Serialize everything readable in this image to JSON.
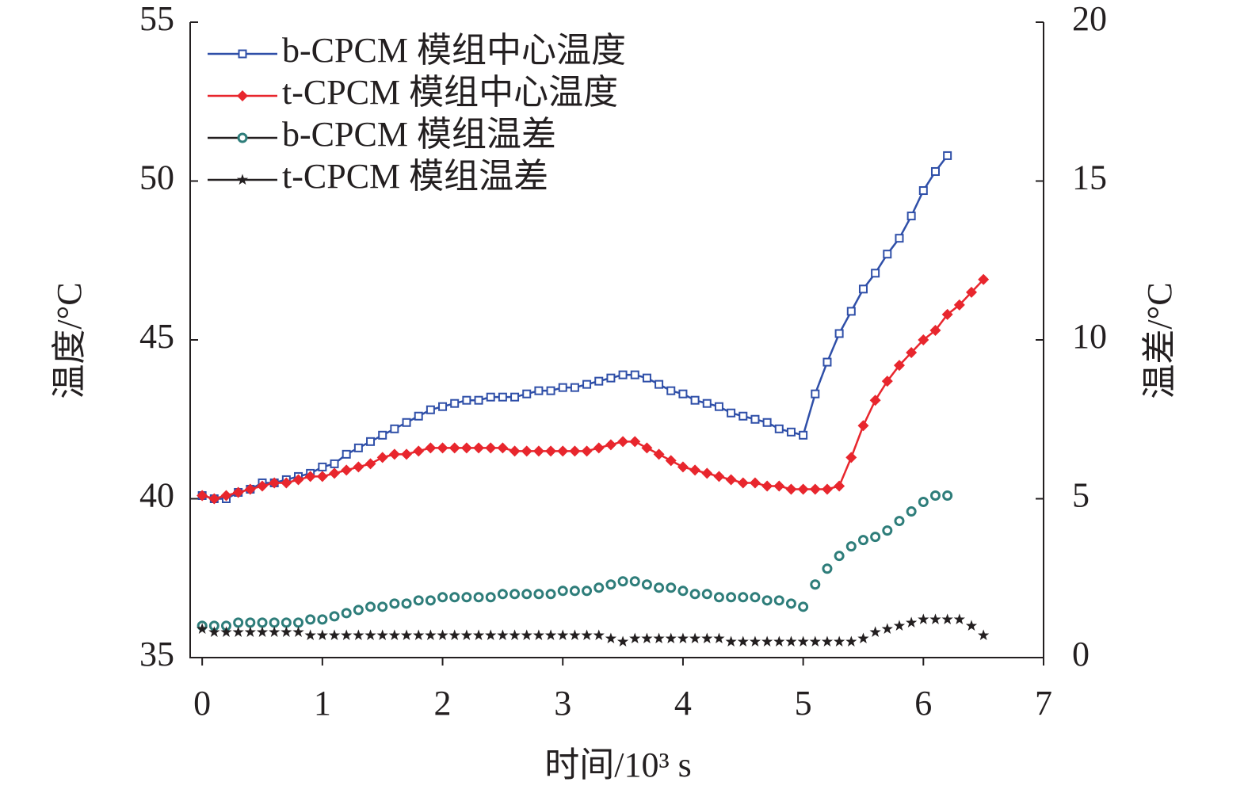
{
  "chart_data": {
    "type": "line",
    "xlabel": "时间/10³ s",
    "ylabel": "温度/°C",
    "y2label": "温差/°C",
    "xlim": [
      -0.1,
      7
    ],
    "xticks": [
      0,
      1,
      2,
      3,
      4,
      5,
      6,
      7
    ],
    "ylim": [
      35,
      55
    ],
    "yticks": [
      35,
      40,
      45,
      50,
      55
    ],
    "y2lim": [
      0,
      20
    ],
    "y2ticks": [
      0,
      5,
      10,
      15,
      20
    ],
    "legend": "upper left",
    "series": [
      {
        "name": "b-CPCM 模组中心温度",
        "color": "#2f4fa8",
        "marker": "square",
        "line": true,
        "axis": "y",
        "x": [
          0,
          0.1,
          0.2,
          0.3,
          0.4,
          0.5,
          0.6,
          0.7,
          0.8,
          0.9,
          1,
          1.1,
          1.2,
          1.3,
          1.4,
          1.5,
          1.6,
          1.7,
          1.8,
          1.9,
          2,
          2.1,
          2.2,
          2.3,
          2.4,
          2.5,
          2.6,
          2.7,
          2.8,
          2.9,
          3,
          3.1,
          3.2,
          3.3,
          3.4,
          3.5,
          3.6,
          3.7,
          3.8,
          3.9,
          4,
          4.1,
          4.2,
          4.3,
          4.4,
          4.5,
          4.6,
          4.7,
          4.8,
          4.9,
          5,
          5.1,
          5.2,
          5.3,
          5.4,
          5.5,
          5.6,
          5.7,
          5.8,
          5.9,
          6,
          6.1,
          6.2
        ],
        "values": [
          40.1,
          40.0,
          40.0,
          40.2,
          40.3,
          40.5,
          40.5,
          40.6,
          40.7,
          40.8,
          41.0,
          41.1,
          41.4,
          41.6,
          41.8,
          42.0,
          42.2,
          42.4,
          42.6,
          42.8,
          42.9,
          43.0,
          43.1,
          43.1,
          43.2,
          43.2,
          43.2,
          43.3,
          43.4,
          43.4,
          43.5,
          43.5,
          43.6,
          43.7,
          43.8,
          43.9,
          43.9,
          43.8,
          43.6,
          43.4,
          43.3,
          43.1,
          43.0,
          42.9,
          42.7,
          42.6,
          42.5,
          42.4,
          42.2,
          42.1,
          42.0,
          43.3,
          44.3,
          45.2,
          45.9,
          46.6,
          47.1,
          47.7,
          48.2,
          48.9,
          49.7,
          50.3,
          50.8
        ]
      },
      {
        "name": "t-CPCM 模组中心温度",
        "color": "#e8262d",
        "marker": "diamond",
        "line": true,
        "axis": "y",
        "x": [
          0,
          0.1,
          0.2,
          0.3,
          0.4,
          0.5,
          0.6,
          0.7,
          0.8,
          0.9,
          1,
          1.1,
          1.2,
          1.3,
          1.4,
          1.5,
          1.6,
          1.7,
          1.8,
          1.9,
          2,
          2.1,
          2.2,
          2.3,
          2.4,
          2.5,
          2.6,
          2.7,
          2.8,
          2.9,
          3,
          3.1,
          3.2,
          3.3,
          3.4,
          3.5,
          3.6,
          3.7,
          3.8,
          3.9,
          4,
          4.1,
          4.2,
          4.3,
          4.4,
          4.5,
          4.6,
          4.7,
          4.8,
          4.9,
          5,
          5.1,
          5.2,
          5.3,
          5.4,
          5.5,
          5.6,
          5.7,
          5.8,
          5.9,
          6,
          6.1,
          6.2,
          6.3,
          6.4,
          6.5
        ],
        "values": [
          40.1,
          40.0,
          40.1,
          40.2,
          40.3,
          40.4,
          40.5,
          40.5,
          40.6,
          40.7,
          40.7,
          40.8,
          40.9,
          41.0,
          41.1,
          41.3,
          41.4,
          41.4,
          41.5,
          41.6,
          41.6,
          41.6,
          41.6,
          41.6,
          41.6,
          41.6,
          41.5,
          41.5,
          41.5,
          41.5,
          41.5,
          41.5,
          41.5,
          41.6,
          41.7,
          41.8,
          41.8,
          41.6,
          41.4,
          41.2,
          41.0,
          40.9,
          40.8,
          40.7,
          40.6,
          40.5,
          40.5,
          40.4,
          40.4,
          40.3,
          40.3,
          40.3,
          40.3,
          40.4,
          41.3,
          42.3,
          43.1,
          43.7,
          44.2,
          44.6,
          45.0,
          45.3,
          45.8,
          46.1,
          46.5,
          46.9
        ]
      },
      {
        "name": "b-CPCM 模组温差",
        "color": "#2e7d7a",
        "marker": "circle",
        "line": false,
        "axis": "y2",
        "x": [
          0,
          0.1,
          0.2,
          0.3,
          0.4,
          0.5,
          0.6,
          0.7,
          0.8,
          0.9,
          1,
          1.1,
          1.2,
          1.3,
          1.4,
          1.5,
          1.6,
          1.7,
          1.8,
          1.9,
          2,
          2.1,
          2.2,
          2.3,
          2.4,
          2.5,
          2.6,
          2.7,
          2.8,
          2.9,
          3,
          3.1,
          3.2,
          3.3,
          3.4,
          3.5,
          3.6,
          3.7,
          3.8,
          3.9,
          4,
          4.1,
          4.2,
          4.3,
          4.4,
          4.5,
          4.6,
          4.7,
          4.8,
          4.9,
          5,
          5.1,
          5.2,
          5.3,
          5.4,
          5.5,
          5.6,
          5.7,
          5.8,
          5.9,
          6,
          6.1,
          6.2
        ],
        "values": [
          1.0,
          1.0,
          1.0,
          1.1,
          1.1,
          1.1,
          1.1,
          1.1,
          1.1,
          1.2,
          1.2,
          1.3,
          1.4,
          1.5,
          1.6,
          1.6,
          1.7,
          1.7,
          1.8,
          1.8,
          1.9,
          1.9,
          1.9,
          1.9,
          1.9,
          2.0,
          2.0,
          2.0,
          2.0,
          2.0,
          2.1,
          2.1,
          2.1,
          2.2,
          2.3,
          2.4,
          2.4,
          2.3,
          2.2,
          2.2,
          2.1,
          2.0,
          2.0,
          1.9,
          1.9,
          1.9,
          1.9,
          1.8,
          1.8,
          1.7,
          1.6,
          2.3,
          2.8,
          3.2,
          3.5,
          3.7,
          3.8,
          4.0,
          4.3,
          4.6,
          4.9,
          5.1,
          5.1
        ]
      },
      {
        "name": "t-CPCM 模组温差",
        "color": "#231f20",
        "marker": "star",
        "line": false,
        "axis": "y2",
        "x": [
          0,
          0.1,
          0.2,
          0.3,
          0.4,
          0.5,
          0.6,
          0.7,
          0.8,
          0.9,
          1,
          1.1,
          1.2,
          1.3,
          1.4,
          1.5,
          1.6,
          1.7,
          1.8,
          1.9,
          2,
          2.1,
          2.2,
          2.3,
          2.4,
          2.5,
          2.6,
          2.7,
          2.8,
          2.9,
          3,
          3.1,
          3.2,
          3.3,
          3.4,
          3.5,
          3.6,
          3.7,
          3.8,
          3.9,
          4,
          4.1,
          4.2,
          4.3,
          4.4,
          4.5,
          4.6,
          4.7,
          4.8,
          4.9,
          5,
          5.1,
          5.2,
          5.3,
          5.4,
          5.5,
          5.6,
          5.7,
          5.8,
          5.9,
          6,
          6.1,
          6.2,
          6.3,
          6.4,
          6.5
        ],
        "values": [
          0.9,
          0.8,
          0.8,
          0.8,
          0.8,
          0.8,
          0.8,
          0.8,
          0.8,
          0.7,
          0.7,
          0.7,
          0.7,
          0.7,
          0.7,
          0.7,
          0.7,
          0.7,
          0.7,
          0.7,
          0.7,
          0.7,
          0.7,
          0.7,
          0.7,
          0.7,
          0.7,
          0.7,
          0.7,
          0.7,
          0.7,
          0.7,
          0.7,
          0.7,
          0.6,
          0.5,
          0.6,
          0.6,
          0.6,
          0.6,
          0.6,
          0.6,
          0.6,
          0.6,
          0.5,
          0.5,
          0.5,
          0.5,
          0.5,
          0.5,
          0.5,
          0.5,
          0.5,
          0.5,
          0.5,
          0.6,
          0.8,
          0.9,
          1.0,
          1.1,
          1.2,
          1.2,
          1.2,
          1.2,
          1.0,
          0.7
        ]
      }
    ]
  }
}
